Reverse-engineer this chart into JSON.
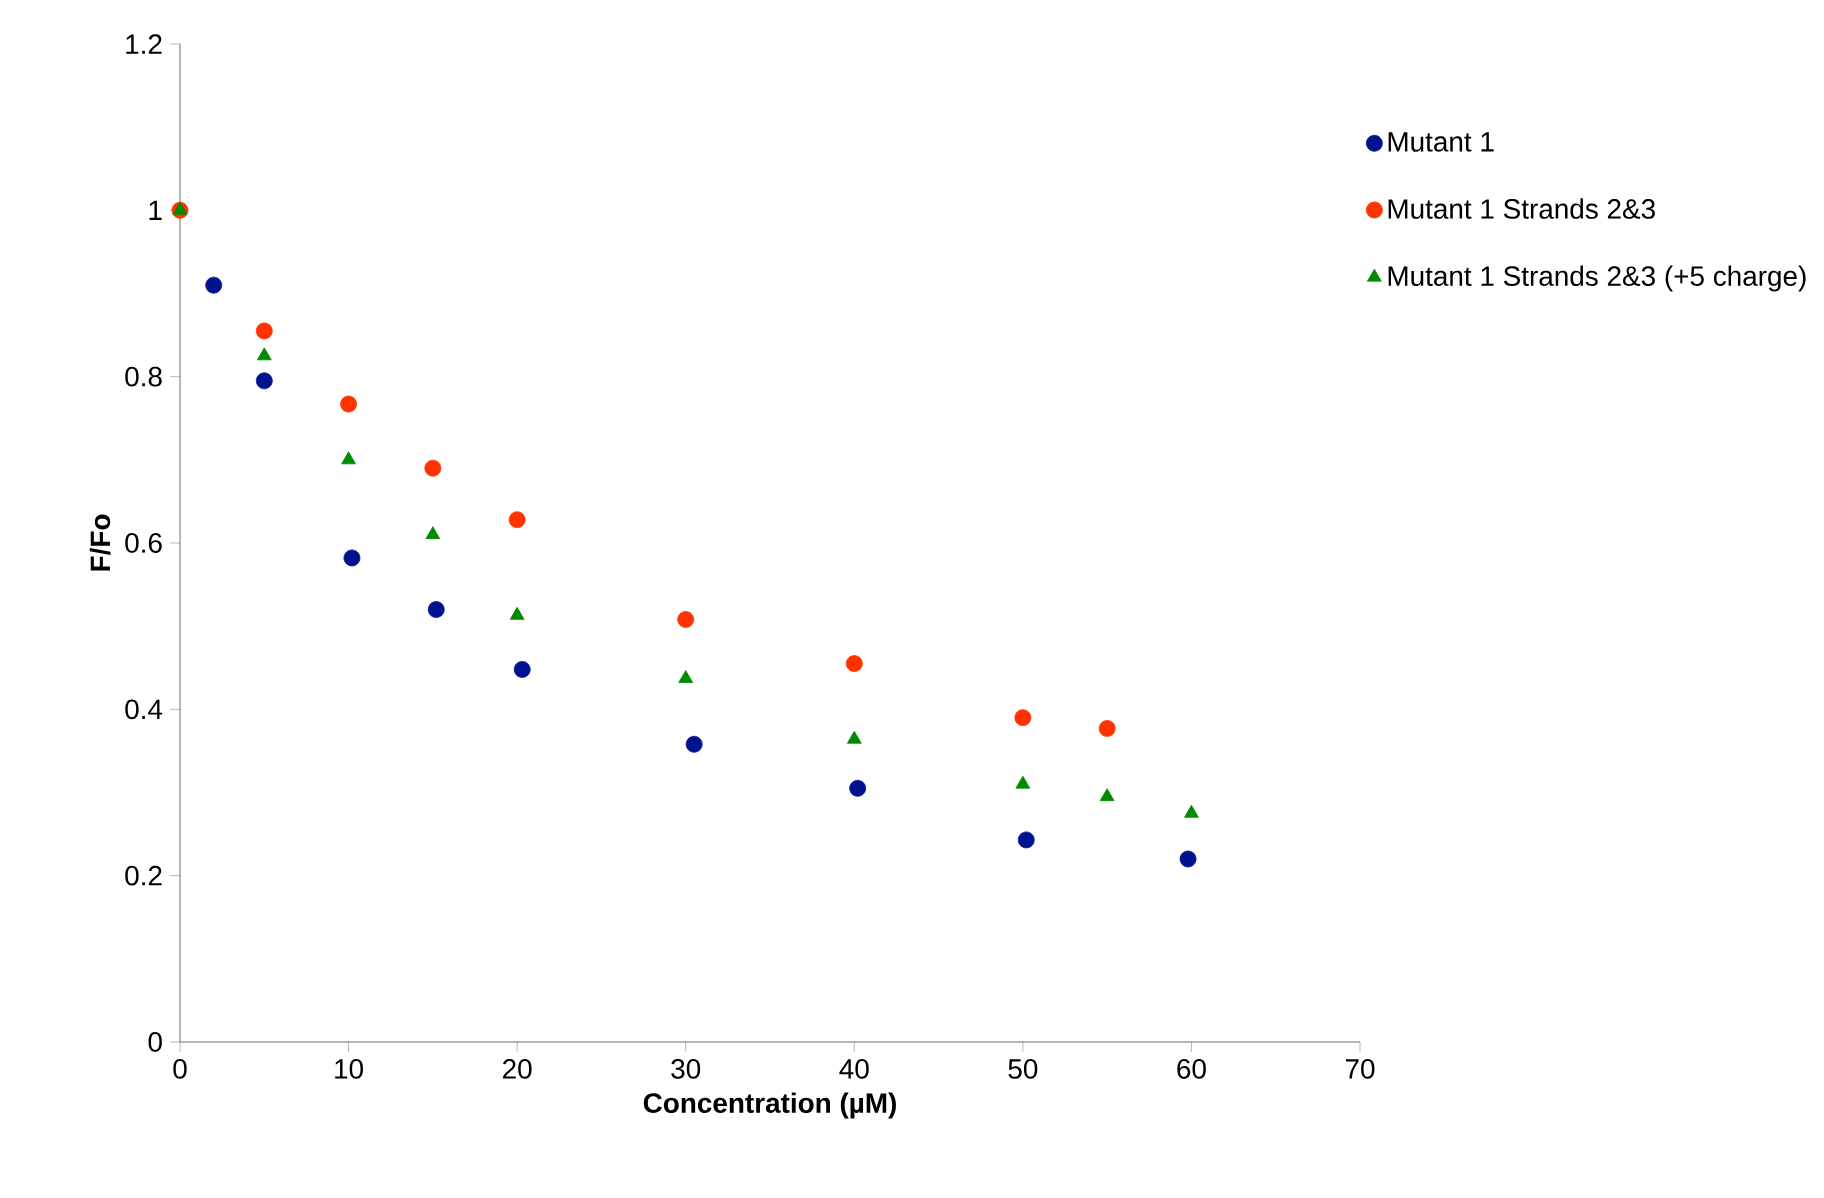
{
  "chart_data": {
    "type": "scatter",
    "xlabel": "Concentration (µM)",
    "ylabel": "F/Fo",
    "xlim": [
      0,
      70
    ],
    "xticks": [
      0,
      10,
      20,
      30,
      40,
      50,
      60,
      70
    ],
    "ylim": [
      0,
      1.2
    ],
    "yticks": [
      0,
      0.2,
      0.4,
      0.6,
      0.8,
      1,
      1.2
    ],
    "grid": false,
    "legend": "right",
    "series": [
      {
        "name": "Mutant 1",
        "color": "#00138f",
        "marker": "circle",
        "x": [
          2,
          5,
          10.2,
          15.2,
          20.3,
          30.5,
          40.2,
          50.2,
          59.8
        ],
        "values": [
          0.91,
          0.795,
          0.582,
          0.52,
          0.448,
          0.358,
          0.305,
          0.243,
          0.22
        ]
      },
      {
        "name": "Mutant 1 Strands 2&3",
        "color": "#ff3300",
        "marker": "circle",
        "x": [
          0,
          5,
          10,
          15,
          20,
          30,
          40,
          50,
          55
        ],
        "values": [
          1.0,
          0.855,
          0.767,
          0.69,
          0.628,
          0.508,
          0.455,
          0.39,
          0.377
        ]
      },
      {
        "name": "Mutant 1 Strands 2&3 (+5 charge)",
        "color": "#008a00",
        "marker": "triangle",
        "x": [
          0,
          5,
          10,
          15,
          20,
          30,
          40,
          50,
          55,
          60
        ],
        "values": [
          1.0,
          0.825,
          0.7,
          0.61,
          0.513,
          0.437,
          0.364,
          0.31,
          0.295,
          0.275
        ]
      }
    ]
  }
}
